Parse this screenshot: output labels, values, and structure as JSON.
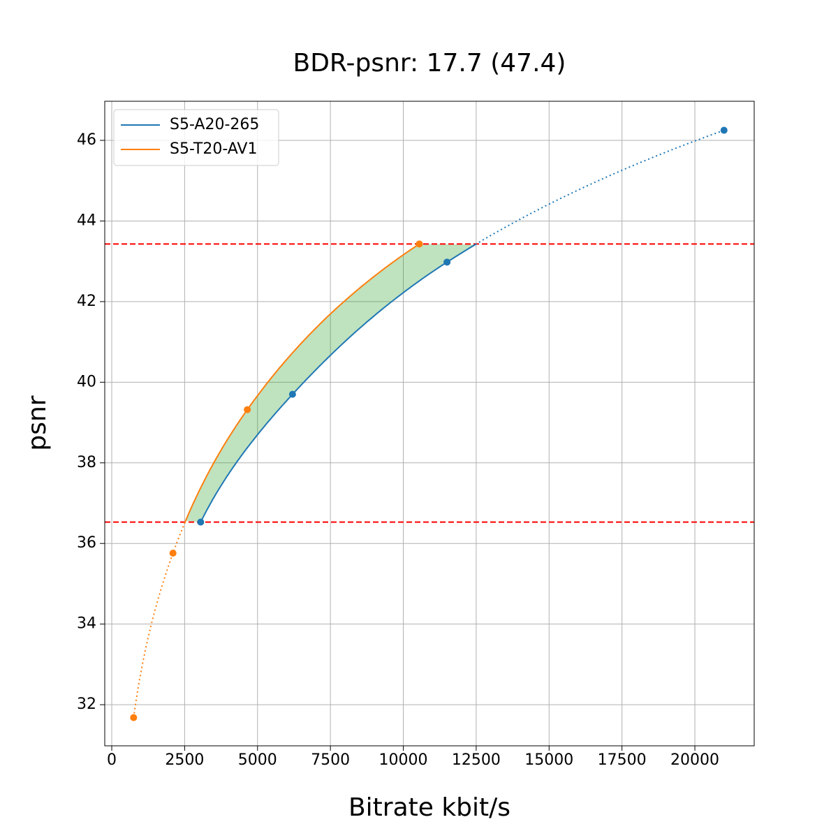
{
  "chart_data": {
    "type": "scatter",
    "title": "BDR-psnr: 17.7 (47.4)",
    "x_label": "Bitrate kbit/s",
    "y_label": "psnr",
    "series": [
      {
        "name": "S5-A20-265",
        "color": "#1f77b4",
        "x": [
          3050,
          6200,
          11500,
          21000
        ],
        "values": [
          36.53,
          39.7,
          42.98,
          46.25
        ]
      },
      {
        "name": "S5-T20-AV1",
        "color": "#ff7f0e",
        "x": [
          750,
          2100,
          4650,
          10550
        ],
        "values": [
          31.68,
          35.76,
          39.32,
          43.43
        ]
      }
    ],
    "hlines": [
      36.53,
      43.43
    ],
    "hline_color": "#ff0000",
    "fill_color": "#2ca02c",
    "xlim": [
      -240,
      22035
    ],
    "ylim": [
      30.98,
      46.97
    ],
    "xticks": [
      0,
      2500,
      5000,
      7500,
      10000,
      12500,
      15000,
      17500,
      20000
    ],
    "yticks": [
      32,
      34,
      36,
      38,
      40,
      42,
      44,
      46
    ],
    "grid": true,
    "legend": "upper left"
  }
}
